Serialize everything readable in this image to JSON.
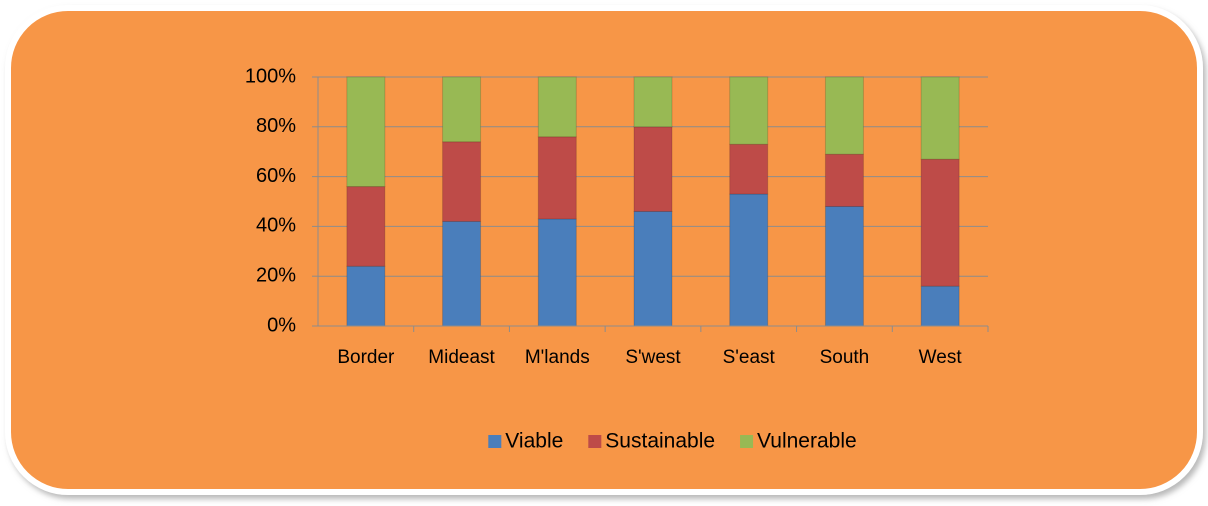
{
  "chart_data": {
    "type": "bar",
    "stacked": true,
    "categories": [
      "Border",
      "Mideast",
      "M'lands",
      "S'west",
      "S'east",
      "South",
      "West"
    ],
    "series": [
      {
        "name": "Viable",
        "color": "#4a7ebb",
        "values": [
          24,
          42,
          43,
          46,
          53,
          48,
          16
        ]
      },
      {
        "name": "Sustainable",
        "color": "#be4b48",
        "values": [
          32,
          32,
          33,
          34,
          20,
          21,
          51
        ]
      },
      {
        "name": "Vulnerable",
        "color": "#98b954",
        "values": [
          44,
          26,
          24,
          20,
          27,
          31,
          33
        ]
      }
    ],
    "ylim": [
      0,
      100
    ],
    "yticks": [
      {
        "value": 0,
        "label": "0%"
      },
      {
        "value": 20,
        "label": "20%"
      },
      {
        "value": 40,
        "label": "40%"
      },
      {
        "value": 60,
        "label": "60%"
      },
      {
        "value": 80,
        "label": "80%"
      },
      {
        "value": 100,
        "label": "100%"
      }
    ],
    "grid": true,
    "legend": "bottom"
  }
}
